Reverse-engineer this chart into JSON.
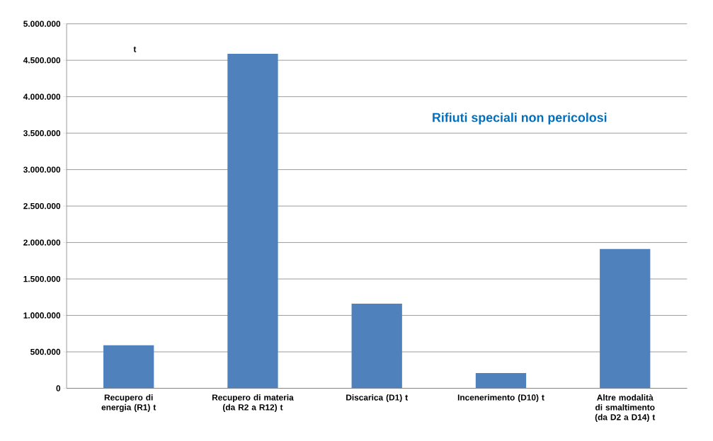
{
  "chart_data": {
    "type": "bar",
    "categories": [
      "Recupero di energia (R1) t",
      "Recupero di materia (da R2 a R12) t",
      "Discarica (D1) t",
      "Incenerimento (D10) t",
      "Altre modalità di smaltimento (da D2 a D14) t"
    ],
    "values": [
      590000,
      4590000,
      1160000,
      210000,
      1910000
    ],
    "color": "#4f81bd",
    "ylim": [
      0,
      5000000
    ],
    "yticks": [
      0,
      {
        "value": 500000,
        "label": "500.000"
      },
      {
        "value": 1000000,
        "label": "1.000.000"
      },
      {
        "value": 1500000,
        "label": "1.500.000"
      },
      {
        "value": 2000000,
        "label": "2.000.000"
      },
      {
        "value": 2500000,
        "label": "2.500.000"
      },
      {
        "value": 3000000,
        "label": "3.000.000"
      },
      {
        "value": 3500000,
        "label": "3.500.000"
      },
      {
        "value": 4000000,
        "label": "4.000.000"
      },
      {
        "value": 4500000,
        "label": "4.500.000"
      },
      {
        "value": 5000000,
        "label": "5.000.000"
      }
    ],
    "grid": "y",
    "annotations": [
      "t",
      "Rifiuti speciali non pericolosi"
    ]
  }
}
